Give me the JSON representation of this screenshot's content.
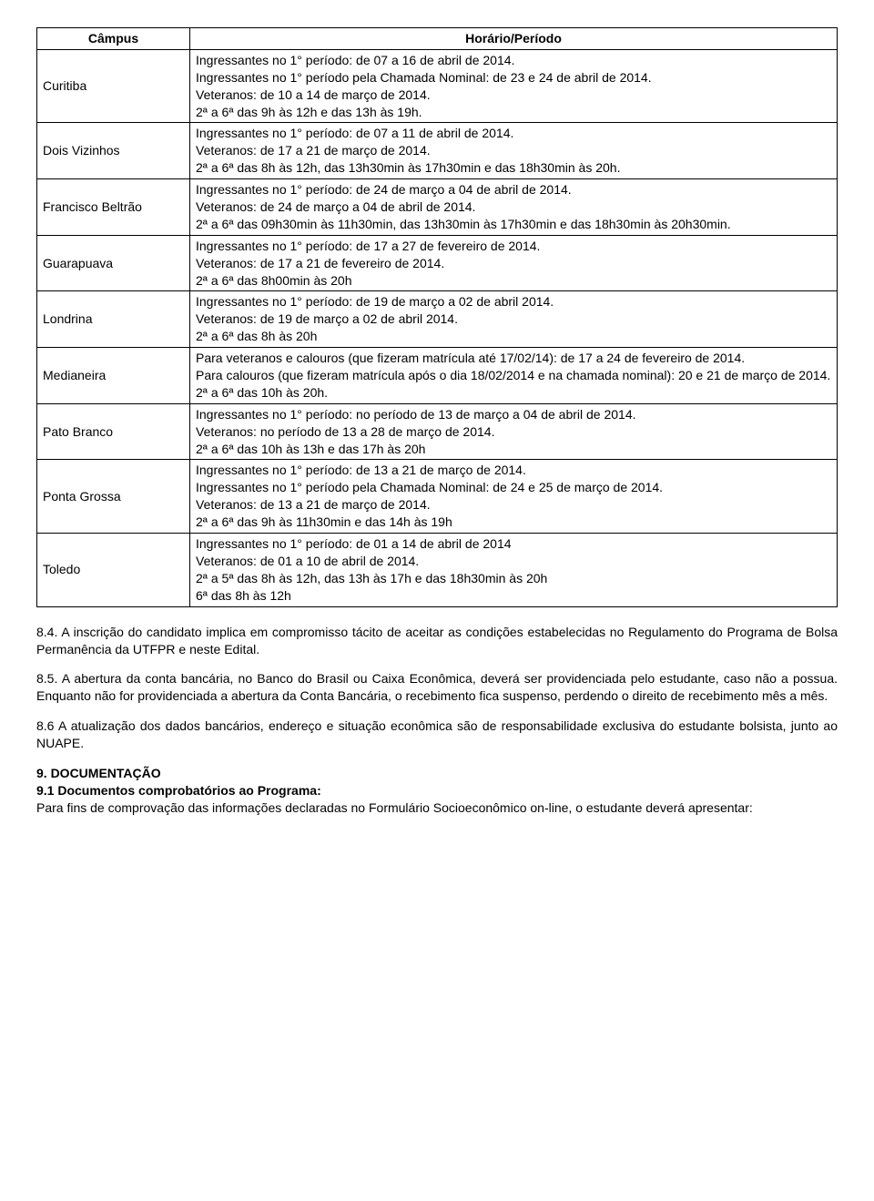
{
  "table": {
    "headers": {
      "campus": "Câmpus",
      "horario": "Horário/Período"
    },
    "rows": [
      {
        "campus": "Curitiba",
        "lines": [
          "Ingressantes no 1° período: de 07 a 16 de abril de 2014.",
          "Ingressantes no 1° período pela Chamada Nominal: de 23 e 24 de abril de 2014.",
          "Veteranos: de 10 a 14 de março de 2014.",
          "2ª a 6ª das 9h às 12h e das 13h às 19h."
        ]
      },
      {
        "campus": "Dois Vizinhos",
        "lines": [
          "Ingressantes no 1° período: de 07 a 11 de abril de 2014.",
          "Veteranos: de 17 a 21 de março de 2014.",
          "2ª a 6ª das 8h às 12h, das 13h30min às 17h30min e das 18h30min às 20h."
        ]
      },
      {
        "campus": "Francisco Beltrão",
        "lines": [
          "Ingressantes no 1° período: de 24 de março a 04 de abril de 2014.",
          "Veteranos: de 24 de março a 04 de abril de 2014.",
          "2ª a 6ª das 09h30min às 11h30min, das 13h30min às 17h30min e das 18h30min às 20h30min."
        ]
      },
      {
        "campus": "Guarapuava",
        "lines": [
          "Ingressantes no 1° período: de 17 a 27 de fevereiro de 2014.",
          "Veteranos: de 17 a 21 de fevereiro de 2014.",
          "2ª a 6ª das 8h00min às 20h"
        ]
      },
      {
        "campus": "Londrina",
        "lines": [
          "Ingressantes no 1° período: de 19 de março a 02 de abril 2014.",
          "Veteranos: de 19 de março a 02 de abril 2014.",
          "2ª a 6ª das 8h às 20h"
        ]
      },
      {
        "campus": "Medianeira",
        "lines": [
          "Para veteranos e calouros (que fizeram matrícula até 17/02/14): de 17 a 24 de fevereiro de 2014.",
          "Para calouros (que fizeram matrícula após o dia 18/02/2014 e na chamada nominal): 20 e 21 de março de 2014.",
          "2ª a 6ª das 10h às 20h."
        ]
      },
      {
        "campus": "Pato Branco",
        "lines": [
          "Ingressantes no 1° período: no período de 13 de março a 04 de abril de 2014.",
          "Veteranos: no período de 13 a 28 de março de 2014.",
          "2ª a 6ª das 10h às 13h e das 17h às 20h"
        ]
      },
      {
        "campus": "Ponta Grossa",
        "lines": [
          "Ingressantes no 1° período: de 13 a 21 de março de 2014.",
          "Ingressantes no 1° período pela Chamada Nominal: de 24 e 25 de março de 2014.",
          "Veteranos: de 13 a 21 de março de 2014.",
          "2ª a 6ª das 9h às 11h30min e das 14h às 19h"
        ]
      },
      {
        "campus": "Toledo",
        "lines": [
          "Ingressantes no 1° período: de 01 a 14 de abril de 2014",
          "Veteranos: de 01 a 10 de abril de 2014.",
          "2ª a 5ª das 8h às 12h, das 13h às 17h e das 18h30min às 20h",
          "6ª das 8h às 12h"
        ]
      }
    ]
  },
  "paragraphs": {
    "p84": "8.4. A inscrição do candidato implica em compromisso tácito de aceitar as condições estabelecidas no Regulamento do Programa de Bolsa Permanência da UTFPR e neste Edital.",
    "p85": "8.5. A abertura da conta bancária, no Banco do Brasil ou Caixa Econômica, deverá ser providenciada pelo estudante, caso não a possua. Enquanto não for providenciada a abertura da Conta Bancária, o recebimento fica suspenso, perdendo o direito de recebimento mês a mês.",
    "p86": "8.6 A atualização dos dados bancários, endereço e situação econômica são de responsabilidade exclusiva do estudante bolsista, junto ao NUAPE.",
    "section9_title": "9. DOCUMENTAÇÃO",
    "section9_1_prefix": "9.1 Documentos comprobatórios ao Programa:",
    "section9_1_body": "Para fins de comprovação das informações declaradas no Formulário Socioeconômico on-line, o estudante deverá apresentar:"
  }
}
